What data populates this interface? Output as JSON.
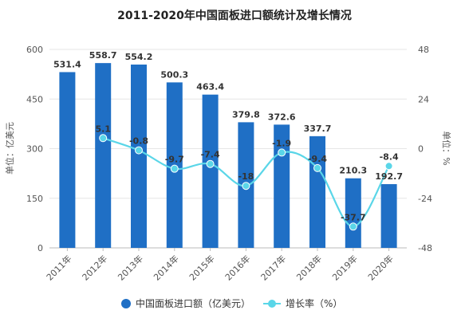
{
  "chart_data": {
    "type": "bar+line",
    "title": "2011-2020年中国面板进口额统计及增长情况",
    "categories": [
      "2011年",
      "2012年",
      "2013年",
      "2014年",
      "2015年",
      "2016年",
      "2017年",
      "2018年",
      "2019年",
      "2020年"
    ],
    "series": [
      {
        "name": "中国面板进口额（亿美元）",
        "type": "bar",
        "axis": "left",
        "values": [
          531.4,
          558.7,
          554.2,
          500.3,
          463.4,
          379.8,
          372.6,
          337.7,
          210.3,
          192.7
        ],
        "labels": [
          "531.4",
          "558.7",
          "554.2",
          "500.3",
          "463.4",
          "379.8",
          "372.6",
          "337.7",
          "210.3",
          "192.7"
        ]
      },
      {
        "name": "增长率（%）",
        "type": "line",
        "axis": "right",
        "values": [
          null,
          5.1,
          -0.8,
          -9.7,
          -7.4,
          -18,
          -1.9,
          -9.4,
          -37.7,
          -8.4
        ],
        "labels": [
          "",
          "5.1",
          "-0.8",
          "-9.7",
          "-7.4",
          "-18",
          "-1.9",
          "-9.4",
          "-37.7",
          "-8.4"
        ]
      }
    ],
    "ylabel_left": "单位：亿美元",
    "ylabel_right": "单位：%",
    "ylim_left": [
      0,
      600
    ],
    "yticks_left": [
      "0",
      "150",
      "300",
      "450",
      "600"
    ],
    "ylim_right": [
      -48,
      48
    ],
    "yticks_right": [
      "-48",
      "-24",
      "0",
      "24",
      "48"
    ],
    "grid": true,
    "legend_position": "bottom",
    "colors": {
      "bar": "#1f6fc5",
      "line": "#5ad6e8",
      "grid": "#e6e6e6",
      "axis": "#bbbbbb"
    }
  }
}
